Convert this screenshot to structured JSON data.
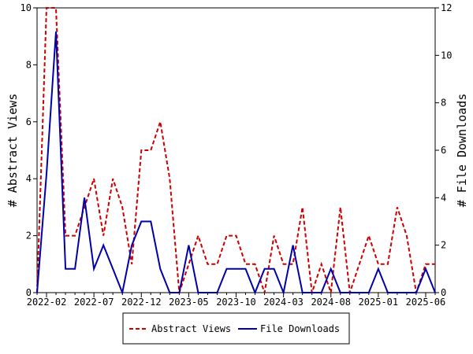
{
  "chart_data": {
    "type": "line",
    "x": [
      "2022-01",
      "2022-02",
      "2022-03",
      "2022-04",
      "2022-05",
      "2022-06",
      "2022-07",
      "2022-08",
      "2022-09",
      "2022-10",
      "2022-11",
      "2022-12",
      "2023-01",
      "2023-02",
      "2023-03",
      "2023-04",
      "2023-05",
      "2023-06",
      "2023-07",
      "2023-08",
      "2023-09",
      "2023-10",
      "2023-11",
      "2023-12",
      "2024-01",
      "2024-02",
      "2024-03",
      "2024-04",
      "2024-05",
      "2024-06",
      "2024-07",
      "2024-08",
      "2024-09",
      "2024-10",
      "2024-11",
      "2024-12",
      "2025-01",
      "2025-02",
      "2025-03",
      "2025-04",
      "2025-05",
      "2025-06",
      "2025-07"
    ],
    "x_tick_labels": [
      "2022-02",
      "2022-07",
      "2022-12",
      "2023-05",
      "2023-10",
      "2024-03",
      "2024-08",
      "2025-01",
      "2025-06"
    ],
    "series": [
      {
        "name": "Abstract Views",
        "color": "#cc0000",
        "axis": "left",
        "values": [
          0,
          10,
          10,
          2,
          2,
          3,
          4,
          2,
          4,
          3,
          1,
          5,
          5,
          6,
          4,
          0,
          1,
          2,
          1,
          1,
          2,
          2,
          1,
          1,
          0,
          2,
          1,
          1,
          3,
          0,
          1,
          0,
          3,
          0,
          1,
          2,
          1,
          1,
          3,
          2,
          0,
          1,
          1
        ]
      },
      {
        "name": "File Downloads",
        "color": "#0000aa",
        "axis": "right",
        "values": [
          0,
          5,
          11,
          1,
          1,
          4,
          1,
          2,
          1,
          0,
          2,
          3,
          3,
          1,
          0,
          0,
          2,
          0,
          0,
          0,
          1,
          1,
          1,
          0,
          1,
          1,
          0,
          2,
          0,
          0,
          0,
          1,
          0,
          0,
          0,
          0,
          1,
          0,
          0,
          0,
          0,
          1,
          0
        ]
      }
    ],
    "ylabel_left": "# Abstract Views",
    "ylabel_right": "# File Downloads",
    "ylim_left": [
      0,
      10
    ],
    "ylim_right": [
      0,
      12
    ],
    "yticks_left": [
      0,
      2,
      4,
      6,
      8,
      10
    ],
    "yticks_right": [
      0,
      2,
      4,
      6,
      8,
      10,
      12
    ],
    "grid": false,
    "legend_position": "bottom-center"
  }
}
